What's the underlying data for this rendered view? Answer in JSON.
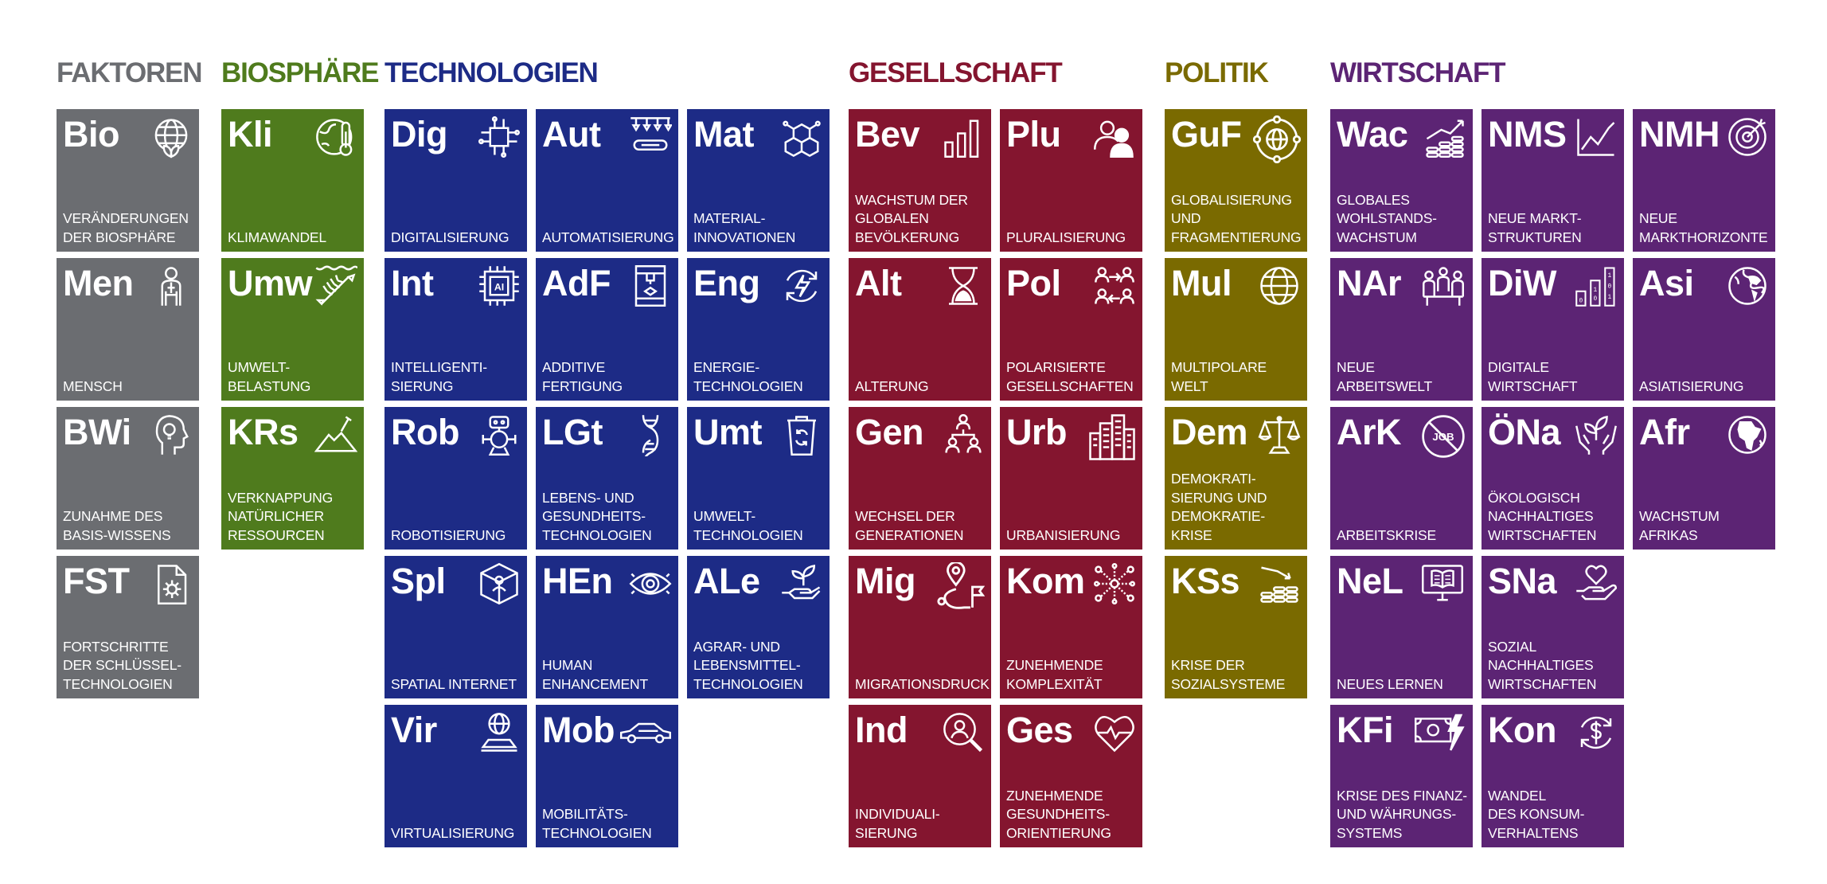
{
  "colors": {
    "faktoren": "#6b6d71",
    "biosphaere": "#4f7b1d",
    "technologien": "#1d2b86",
    "gesellschaft": "#84152f",
    "politik": "#7a6a00",
    "wirtschaft": "#5c2474"
  },
  "headers": {
    "faktoren": "FAKTOREN",
    "biosphaere": "BIOSPHÄRE",
    "technologien": "TECHNOLOGIEN",
    "gesellschaft": "GESELLSCHAFT",
    "politik": "POLITIK",
    "wirtschaft": "WIRTSCHAFT"
  },
  "tiles": {
    "bio": {
      "code": "Bio",
      "label": "VERÄNDERUNGEN\nDER BIOSPHÄRE",
      "icon": "globe-leaf-icon"
    },
    "men": {
      "code": "Men",
      "label": "MENSCH",
      "icon": "human-body-icon"
    },
    "bwi": {
      "code": "BWi",
      "label": "ZUNAHME DES\nBASIS-WISSENS",
      "icon": "head-bulb-icon"
    },
    "fst": {
      "code": "FST",
      "label": "FORTSCHRITTE\nDER SCHLÜSSEL-\nTECHNOLOGIEN",
      "icon": "document-gear-icon"
    },
    "kli": {
      "code": "Kli",
      "label": "KLIMAWANDEL",
      "icon": "globe-thermometer-icon"
    },
    "umw": {
      "code": "Umw",
      "label": "UMWELT-\nBELASTUNG",
      "icon": "fish-bone-icon"
    },
    "krs": {
      "code": "KRs",
      "label": "VERKNAPPUNG\nNATÜRLICHER\nRESSOURCEN",
      "icon": "mountain-shovel-icon"
    },
    "dig": {
      "code": "Dig",
      "label": "DIGITALISIERUNG",
      "icon": "circuit-chip-icon"
    },
    "aut": {
      "code": "Aut",
      "label": "AUTOMATISIERUNG",
      "icon": "robot-arm-conveyor-icon"
    },
    "mat": {
      "code": "Mat",
      "label": "MATERIAL-\nINNOVATIONEN",
      "icon": "hexagon-molecule-icon"
    },
    "int": {
      "code": "Int",
      "label": "INTELLIGENTI-\nSIERUNG",
      "icon": "ai-chip-icon"
    },
    "adf": {
      "code": "AdF",
      "label": "ADDITIVE\nFERTIGUNG",
      "icon": "3d-printer-icon"
    },
    "eng": {
      "code": "Eng",
      "label": "ENERGIE-\nTECHNOLOGIEN",
      "icon": "energy-cycle-icon"
    },
    "rob": {
      "code": "Rob",
      "label": "ROBOTISIERUNG",
      "icon": "robot-icon"
    },
    "lgt": {
      "code": "LGt",
      "label": "LEBENS- UND\nGESUNDHEITS-\nTECHNOLOGIEN",
      "icon": "dna-icon"
    },
    "umt": {
      "code": "Umt",
      "label": "UMWELT-\nTECHNOLOGIEN",
      "icon": "recycling-bin-icon"
    },
    "spl": {
      "code": "Spl",
      "label": "SPATIAL INTERNET",
      "icon": "cube-person-icon"
    },
    "hen": {
      "code": "HEn",
      "label": "HUMAN\nENHANCEMENT",
      "icon": "eye-icon"
    },
    "ale": {
      "code": "ALe",
      "label": "AGRAR- UND\nLEBENSMITTEL-\nTECHNOLOGIEN",
      "icon": "hand-sprout-icon"
    },
    "vir": {
      "code": "Vir",
      "label": "VIRTUALISIERUNG",
      "icon": "hologram-globe-icon"
    },
    "mob": {
      "code": "Mob",
      "label": "MOBILITÄTS-\nTECHNOLOGIEN",
      "icon": "car-icon"
    },
    "bev": {
      "code": "Bev",
      "label": "WACHSTUM DER\nGLOBALEN\nBEVÖLKERUNG",
      "icon": "bar-growth-icon"
    },
    "plu": {
      "code": "Plu",
      "label": "PLURALISIERUNG",
      "icon": "people-icon"
    },
    "alt": {
      "code": "Alt",
      "label": "ALTERUNG",
      "icon": "hourglass-icon"
    },
    "pol": {
      "code": "Pol",
      "label": "POLARISIERTE\nGESELLSCHAFTEN",
      "icon": "polarized-people-icon"
    },
    "gen": {
      "code": "Gen",
      "label": "WECHSEL DER\nGENERATIONEN",
      "icon": "generations-icon"
    },
    "urb": {
      "code": "Urb",
      "label": "URBANISIERUNG",
      "icon": "city-buildings-icon"
    },
    "mig": {
      "code": "Mig",
      "label": "MIGRATIONSDRUCK",
      "icon": "migration-route-icon"
    },
    "kom": {
      "code": "Kom",
      "label": "ZUNEHMENDE\nKOMPLEXITÄT",
      "icon": "network-nodes-icon"
    },
    "ind": {
      "code": "Ind",
      "label": "INDIVIDUALI-\nSIERUNG",
      "icon": "magnifier-person-icon"
    },
    "ges": {
      "code": "Ges",
      "label": "ZUNEHMENDE\nGESUNDHEITS-\nORIENTIERUNG",
      "icon": "heart-pulse-icon"
    },
    "guf": {
      "code": "GuF",
      "label": "GLOBALISIERUNG\nUND\nFRAGMENTIERUNG",
      "icon": "globe-nodes-icon"
    },
    "mul": {
      "code": "Mul",
      "label": "MULTIPOLARE\nWELT",
      "icon": "globe-icon"
    },
    "dem": {
      "code": "Dem",
      "label": "DEMOKRATI-\nSIERUNG UND\nDEMOKRATIE-KRISE",
      "icon": "scales-icon"
    },
    "kss": {
      "code": "KSs",
      "label": "KRISE DER\nSOZIALSYSTEME",
      "icon": "coins-down-icon"
    },
    "wac": {
      "code": "Wac",
      "label": "GLOBALES\nWOHLSTANDS-\nWACHSTUM",
      "icon": "coins-growth-icon"
    },
    "nms": {
      "code": "NMS",
      "label": "NEUE MARKT-\nSTRUKTUREN",
      "icon": "line-chart-icon"
    },
    "nmh": {
      "code": "NMH",
      "label": "NEUE\nMARKTHORIZONTE",
      "icon": "target-icon"
    },
    "nar": {
      "code": "NAr",
      "label": "NEUE ARBEITSWELT",
      "icon": "meeting-people-icon"
    },
    "diw": {
      "code": "DiW",
      "label": "DIGITALE\nWIRTSCHAFT",
      "icon": "binary-bars-icon"
    },
    "asi": {
      "code": "Asi",
      "label": "ASIATISIERUNG",
      "icon": "globe-asia-icon"
    },
    "ark": {
      "code": "ArK",
      "label": "ARBEITSKRISE",
      "icon": "no-job-icon"
    },
    "ona": {
      "code": "ÖNa",
      "label": "ÖKOLOGISCH\nNACHHALTIGES\nWIRTSCHAFTEN",
      "icon": "hands-leaf-icon"
    },
    "afr": {
      "code": "Afr",
      "label": "WACHSTUM\nAFRIKAS",
      "icon": "globe-africa-icon"
    },
    "nel": {
      "code": "NeL",
      "label": "NEUES LERNEN",
      "icon": "monitor-book-icon"
    },
    "sna": {
      "code": "SNa",
      "label": "SOZIAL\nNACHHALTIGES\nWIRTSCHAFTEN",
      "icon": "hand-heart-icon"
    },
    "kfi": {
      "code": "KFi",
      "label": "KRISE DES FINANZ-\nUND WÄHRUNGS-\nSYSTEMS",
      "icon": "banknote-lightning-icon"
    },
    "kon": {
      "code": "Kon",
      "label": "WANDEL\nDES KONSUM-\nVERHALTENS",
      "icon": "dollar-cycle-icon"
    }
  }
}
